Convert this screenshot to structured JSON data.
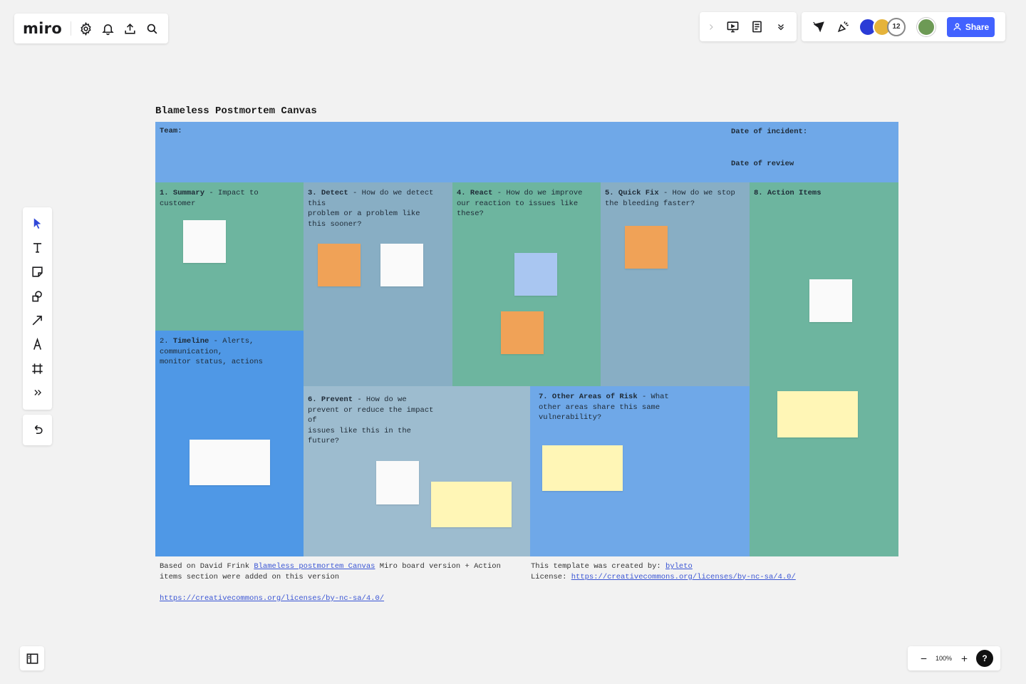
{
  "app": {
    "logo": "miro"
  },
  "toolbar": {
    "share_label": "Share",
    "collaborator_count": "12"
  },
  "zoom": {
    "level": "100%",
    "help": "?"
  },
  "board": {
    "title": "Blameless Postmortem Canvas",
    "header": {
      "team": "Team:",
      "date_incident": "Date of incident:",
      "date_review": "Date of review"
    },
    "sections": [
      {
        "num": "1.",
        "name": "Summary",
        "desc": " - Impact to\ncustomer"
      },
      {
        "num": "2.",
        "name": "Timeline",
        "desc": " - Alerts,\ncommunication,\nmonitor status, actions"
      },
      {
        "num": "3.",
        "name": "Detect",
        "desc": " - How do we detect\nthis\nproblem or a problem like\nthis sooner?"
      },
      {
        "num": "4.",
        "name": "React",
        "desc": " - How do we improve\nour reaction to issues like\nthese?"
      },
      {
        "num": "5.",
        "name": "Quick Fix",
        "desc": " - How do we stop\nthe bleeding faster?"
      },
      {
        "num": "6.",
        "name": "Prevent",
        "desc": " - How do we\nprevent or reduce the impact\nof\nissues like this in the\nfuture?"
      },
      {
        "num": "7.",
        "name": "Other Areas of Risk",
        "desc": " - What\nother areas share this same\nvulnerability?"
      },
      {
        "num": "8.",
        "name": "Action Items",
        "desc": ""
      }
    ],
    "footer": {
      "left_prefix": "Based on David Frink ",
      "left_link": "Blameless postmortem Canvas",
      "left_suffix": " Miro board version + Action\nitems section were added on this version",
      "left_url": "https://creativecommons.org/licenses/by-nc-sa/4.0/",
      "right_prefix": "This template was created by: ",
      "right_author": "byleto",
      "right_license_label": "License: ",
      "right_license_url": "https://creativecommons.org/licenses/by-nc-sa/4.0/"
    }
  },
  "colors": {
    "header_blue": "#6fa8e8",
    "green": "#6db59f",
    "slate": "#88aec4",
    "bright_blue": "#4f98e6",
    "pale_slate": "#9dbccf",
    "mid_blue": "#6fa8e8"
  }
}
